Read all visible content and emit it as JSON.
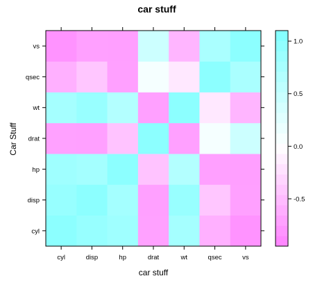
{
  "chart_data": {
    "type": "heatmap",
    "title": "car stuff",
    "xlabel": "car stuff",
    "ylabel": "Car Stuff",
    "x_categories": [
      "cyl",
      "disp",
      "hp",
      "drat",
      "wt",
      "qsec",
      "vs"
    ],
    "y_categories": [
      "cyl",
      "disp",
      "hp",
      "drat",
      "wt",
      "qsec",
      "vs"
    ],
    "values": [
      [
        1.0,
        0.9,
        0.83,
        -0.7,
        0.78,
        -0.59,
        -0.81
      ],
      [
        0.9,
        1.0,
        0.79,
        -0.71,
        0.89,
        -0.43,
        -0.71
      ],
      [
        0.83,
        0.79,
        1.0,
        -0.45,
        0.66,
        -0.71,
        -0.72
      ],
      [
        -0.7,
        -0.71,
        -0.45,
        1.0,
        -0.71,
        0.09,
        0.44
      ],
      [
        0.78,
        0.89,
        0.66,
        -0.71,
        1.0,
        -0.17,
        -0.55
      ],
      [
        -0.59,
        -0.43,
        -0.71,
        0.09,
        -0.17,
        1.0,
        0.74
      ],
      [
        -0.81,
        -0.71,
        -0.72,
        0.44,
        -0.55,
        0.74,
        1.0
      ]
    ],
    "colorbar": {
      "range": [
        -0.95,
        1.1
      ],
      "ticks": [
        1.0,
        0.5,
        0.0,
        -0.5
      ],
      "tick_labels": [
        "1.0",
        "0.5",
        "0.0",
        "-0.5"
      ],
      "low_color": "#ff80ff",
      "mid_color": "#ffffff",
      "high_color": "#80ffff"
    }
  }
}
